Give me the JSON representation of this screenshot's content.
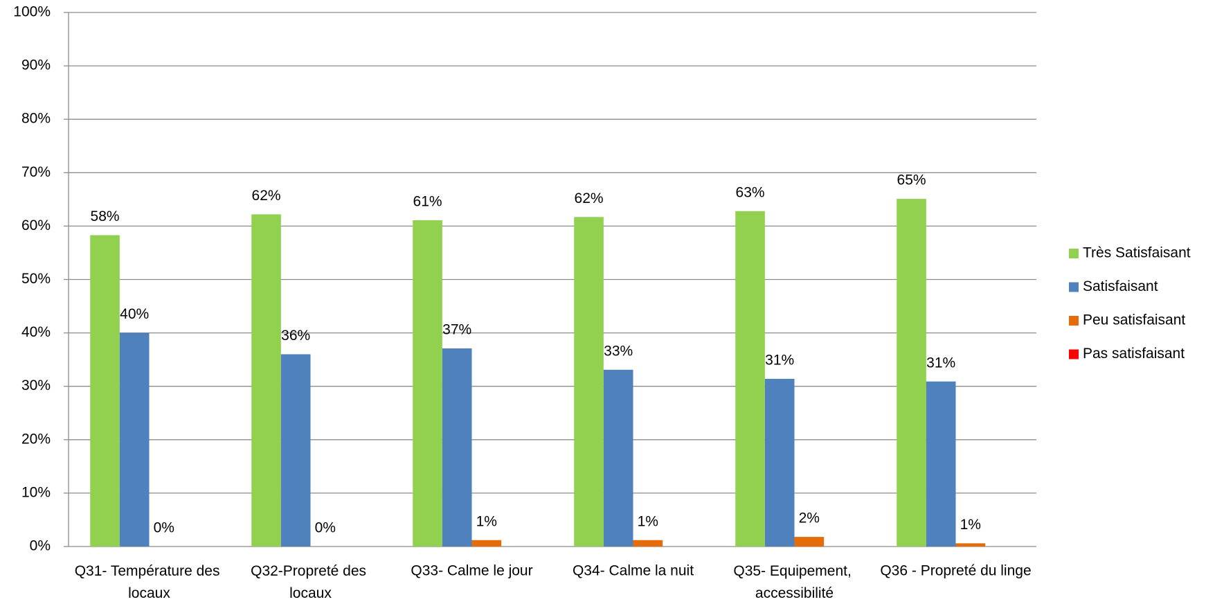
{
  "chart_data": {
    "type": "bar",
    "categories": [
      "Q31- Température des locaux",
      "Q32-Propreté des locaux",
      "Q33- Calme le jour",
      "Q34- Calme la nuit",
      "Q35- Equipement, accessibilité",
      "Q36 - Propreté du linge"
    ],
    "series": [
      {
        "name": "Très Satisfaisant",
        "color": "#92d050",
        "values": [
          58.3,
          62.2,
          61.1,
          61.7,
          62.8,
          65.1
        ],
        "value_labels": [
          "58%",
          "62%",
          "61%",
          "62%",
          "63%",
          "65%"
        ]
      },
      {
        "name": "Satisfaisant",
        "color": "#4f81bd",
        "values": [
          40.0,
          36.0,
          37.1,
          33.1,
          31.4,
          30.9
        ],
        "value_labels": [
          "40%",
          "36%",
          "37%",
          "33%",
          "31%",
          "31%"
        ]
      },
      {
        "name": "Peu satisfaisant",
        "color": "#e46c0a",
        "values": [
          0,
          0,
          1.2,
          1.2,
          1.8,
          0.6
        ],
        "value_labels": [
          "0%",
          "0%",
          "1%",
          "1%",
          "2%",
          "1%"
        ]
      },
      {
        "name": "Pas satisfaisant",
        "color": "#ff0000",
        "values": [
          0,
          0,
          0,
          0,
          0,
          0
        ]
      }
    ],
    "ylim": [
      0,
      100
    ],
    "yticks": [
      {
        "value": 0,
        "label": "0%"
      },
      {
        "value": 10,
        "label": "10%"
      },
      {
        "value": 20,
        "label": "20%"
      },
      {
        "value": 30,
        "label": "30%"
      },
      {
        "value": 40,
        "label": "40%"
      },
      {
        "value": 50,
        "label": "50%"
      },
      {
        "value": 60,
        "label": "60%"
      },
      {
        "value": 70,
        "label": "70%"
      },
      {
        "value": 80,
        "label": "80%"
      },
      {
        "value": 90,
        "label": "90%"
      },
      {
        "value": 100,
        "label": "100%"
      }
    ],
    "grid": true,
    "legend": "right"
  }
}
